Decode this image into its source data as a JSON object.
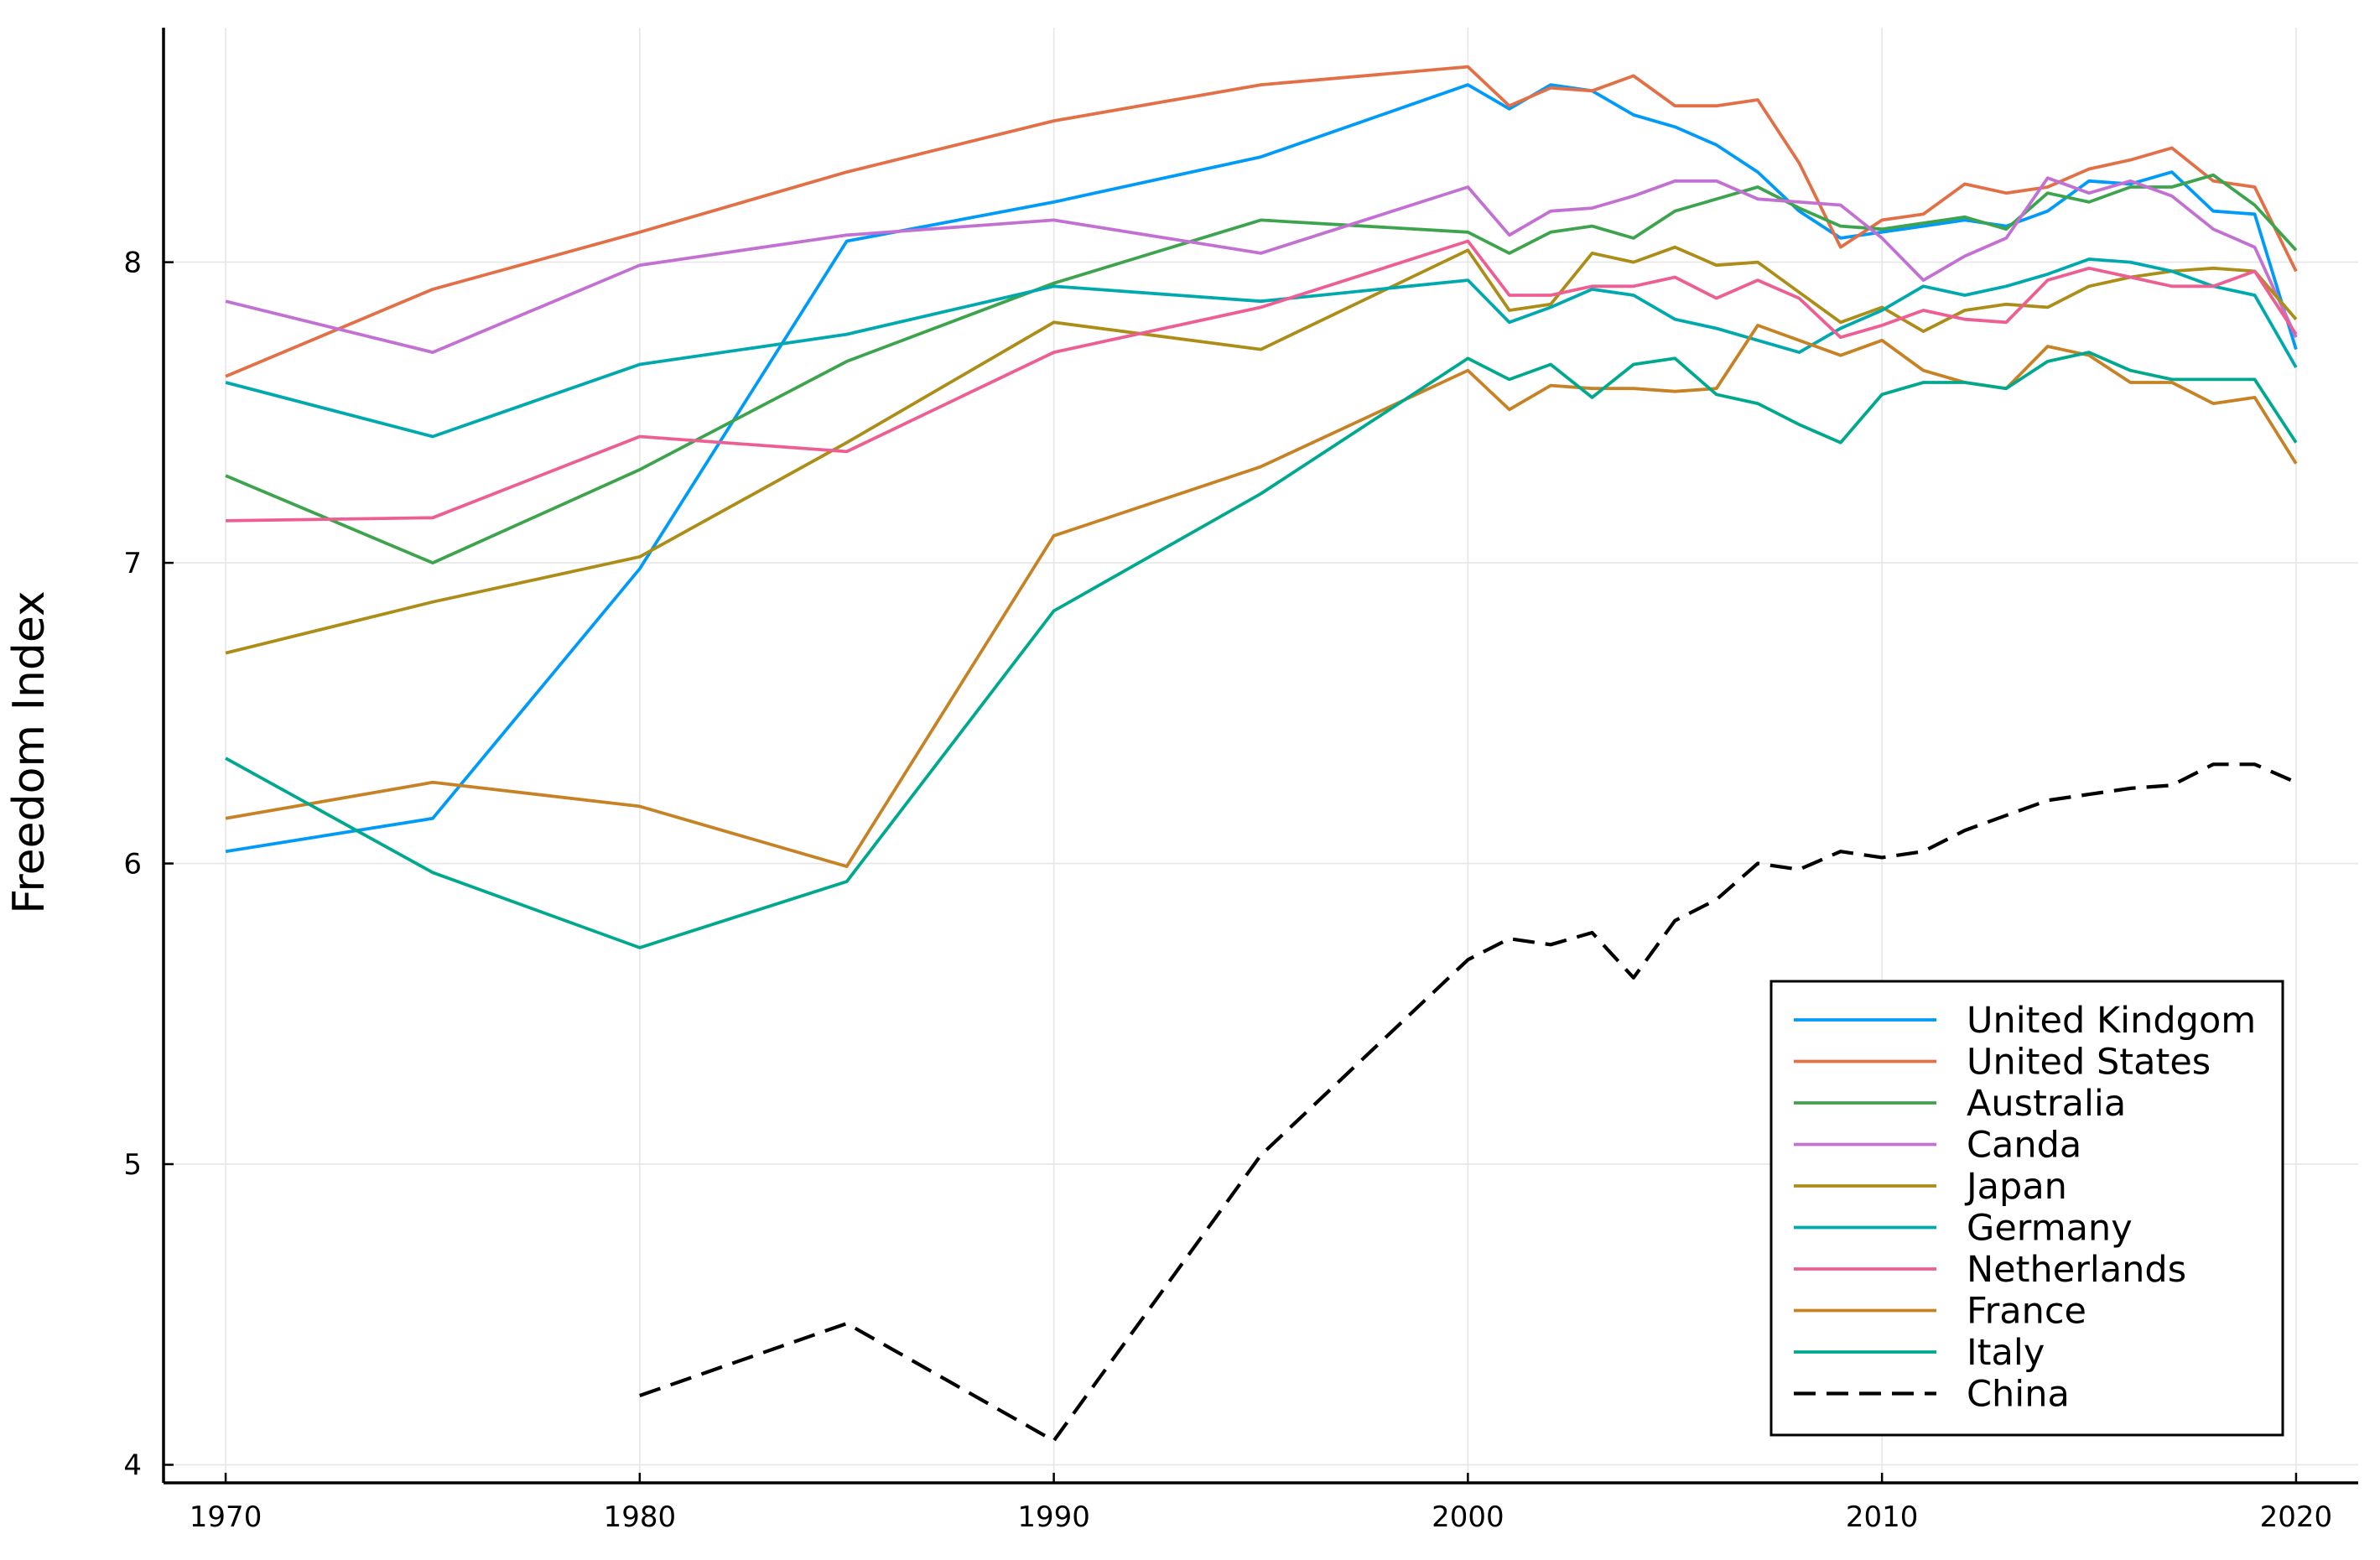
{
  "chart_data": {
    "type": "line",
    "title": "",
    "xlabel": "",
    "ylabel": "Freedom Index",
    "xlim": [
      1968.5,
      2021.5
    ],
    "ylim": [
      3.94,
      8.78
    ],
    "xticks": [
      1970,
      1980,
      1990,
      2000,
      2010,
      2020
    ],
    "yticks": [
      4,
      5,
      6,
      7,
      8
    ],
    "grid": true,
    "legend_position": "bottom-right",
    "series": [
      {
        "name": "United Kindgom",
        "color": "#009af9",
        "dash": "solid",
        "x": [
          1970,
          1975,
          1980,
          1985,
          1990,
          1995,
          2000,
          2001,
          2002,
          2003,
          2004,
          2005,
          2006,
          2007,
          2008,
          2009,
          2010,
          2011,
          2012,
          2013,
          2014,
          2015,
          2016,
          2017,
          2018,
          2019,
          2020
        ],
        "y": [
          6.04,
          6.15,
          6.98,
          8.07,
          8.2,
          8.35,
          8.59,
          8.51,
          8.59,
          8.57,
          8.49,
          8.45,
          8.39,
          8.3,
          8.17,
          8.08,
          8.1,
          8.12,
          8.14,
          8.12,
          8.17,
          8.27,
          8.26,
          8.3,
          8.17,
          8.16,
          7.71
        ]
      },
      {
        "name": "United States",
        "color": "#e26f46",
        "dash": "solid",
        "x": [
          1970,
          1975,
          1980,
          1985,
          1990,
          1995,
          2000,
          2001,
          2002,
          2003,
          2004,
          2005,
          2006,
          2007,
          2008,
          2009,
          2010,
          2011,
          2012,
          2013,
          2014,
          2015,
          2016,
          2017,
          2018,
          2019,
          2020
        ],
        "y": [
          7.62,
          7.91,
          8.1,
          8.3,
          8.47,
          8.59,
          8.65,
          8.52,
          8.58,
          8.57,
          8.62,
          8.52,
          8.52,
          8.54,
          8.33,
          8.05,
          8.14,
          8.16,
          8.26,
          8.23,
          8.25,
          8.31,
          8.34,
          8.38,
          8.27,
          8.25,
          7.97
        ]
      },
      {
        "name": "Australia",
        "color": "#3da44d",
        "dash": "solid",
        "x": [
          1970,
          1975,
          1980,
          1985,
          1990,
          1995,
          2000,
          2001,
          2002,
          2003,
          2004,
          2005,
          2006,
          2007,
          2008,
          2009,
          2010,
          2011,
          2012,
          2013,
          2014,
          2015,
          2016,
          2017,
          2018,
          2019,
          2020
        ],
        "y": [
          7.29,
          7.0,
          7.31,
          7.67,
          7.93,
          8.14,
          8.1,
          8.03,
          8.1,
          8.12,
          8.08,
          8.17,
          8.21,
          8.25,
          8.18,
          8.12,
          8.11,
          8.13,
          8.15,
          8.11,
          8.23,
          8.2,
          8.25,
          8.25,
          8.29,
          8.19,
          8.04
        ]
      },
      {
        "name": "Canda",
        "color": "#c271d2",
        "dash": "solid",
        "x": [
          1970,
          1975,
          1980,
          1985,
          1990,
          1995,
          2000,
          2001,
          2002,
          2003,
          2004,
          2005,
          2006,
          2007,
          2008,
          2009,
          2010,
          2011,
          2012,
          2013,
          2014,
          2015,
          2016,
          2017,
          2018,
          2019,
          2020
        ],
        "y": [
          7.87,
          7.7,
          7.99,
          8.09,
          8.14,
          8.03,
          8.25,
          8.09,
          8.17,
          8.18,
          8.22,
          8.27,
          8.27,
          8.21,
          8.2,
          8.19,
          8.08,
          7.94,
          8.02,
          8.08,
          8.28,
          8.23,
          8.27,
          8.22,
          8.11,
          8.05,
          7.75
        ]
      },
      {
        "name": "Japan",
        "color": "#ac8d18",
        "dash": "solid",
        "x": [
          1970,
          1975,
          1980,
          1985,
          1990,
          1995,
          2000,
          2001,
          2002,
          2003,
          2004,
          2005,
          2006,
          2007,
          2008,
          2009,
          2010,
          2011,
          2012,
          2013,
          2014,
          2015,
          2016,
          2017,
          2018,
          2019,
          2020
        ],
        "y": [
          6.7,
          6.87,
          7.02,
          7.4,
          7.8,
          7.71,
          8.04,
          7.84,
          7.86,
          8.03,
          8.0,
          8.05,
          7.99,
          8.0,
          7.9,
          7.8,
          7.85,
          7.77,
          7.84,
          7.86,
          7.85,
          7.92,
          7.95,
          7.97,
          7.98,
          7.97,
          7.81
        ]
      },
      {
        "name": "Germany",
        "color": "#00a9ad",
        "dash": "solid",
        "x": [
          1970,
          1975,
          1980,
          1985,
          1990,
          1995,
          2000,
          2001,
          2002,
          2003,
          2004,
          2005,
          2006,
          2007,
          2008,
          2009,
          2010,
          2011,
          2012,
          2013,
          2014,
          2015,
          2016,
          2017,
          2018,
          2019,
          2020
        ],
        "y": [
          7.6,
          7.42,
          7.66,
          7.76,
          7.92,
          7.87,
          7.94,
          7.8,
          7.85,
          7.91,
          7.89,
          7.81,
          7.78,
          7.74,
          7.7,
          7.78,
          7.84,
          7.92,
          7.89,
          7.92,
          7.96,
          8.01,
          8.0,
          7.97,
          7.92,
          7.89,
          7.65
        ]
      },
      {
        "name": "Netherlands",
        "color": "#ed5e93",
        "dash": "solid",
        "x": [
          1970,
          1975,
          1980,
          1985,
          1990,
          1995,
          2000,
          2001,
          2002,
          2003,
          2004,
          2005,
          2006,
          2007,
          2008,
          2009,
          2010,
          2011,
          2012,
          2013,
          2014,
          2015,
          2016,
          2017,
          2018,
          2019,
          2020
        ],
        "y": [
          7.14,
          7.15,
          7.42,
          7.37,
          7.7,
          7.85,
          8.07,
          7.89,
          7.89,
          7.92,
          7.92,
          7.95,
          7.88,
          7.94,
          7.88,
          7.75,
          7.79,
          7.84,
          7.81,
          7.8,
          7.94,
          7.98,
          7.95,
          7.92,
          7.92,
          7.97,
          7.76
        ]
      },
      {
        "name": "France",
        "color": "#c68225",
        "dash": "solid",
        "x": [
          1970,
          1975,
          1980,
          1985,
          1990,
          1995,
          2000,
          2001,
          2002,
          2003,
          2004,
          2005,
          2006,
          2007,
          2008,
          2009,
          2010,
          2011,
          2012,
          2013,
          2014,
          2015,
          2016,
          2017,
          2018,
          2019,
          2020
        ],
        "y": [
          6.15,
          6.27,
          6.19,
          5.99,
          7.09,
          7.32,
          7.64,
          7.51,
          7.59,
          7.58,
          7.58,
          7.57,
          7.58,
          7.79,
          7.74,
          7.69,
          7.74,
          7.64,
          7.6,
          7.58,
          7.72,
          7.69,
          7.6,
          7.6,
          7.53,
          7.55,
          7.33
        ]
      },
      {
        "name": "Italy",
        "color": "#00a98d",
        "dash": "solid",
        "x": [
          1970,
          1975,
          1980,
          1985,
          1990,
          1995,
          2000,
          2001,
          2002,
          2003,
          2004,
          2005,
          2006,
          2007,
          2008,
          2009,
          2010,
          2011,
          2012,
          2013,
          2014,
          2015,
          2016,
          2017,
          2018,
          2019,
          2020
        ],
        "y": [
          6.35,
          5.97,
          5.72,
          5.94,
          6.84,
          7.23,
          7.68,
          7.61,
          7.66,
          7.55,
          7.66,
          7.68,
          7.56,
          7.53,
          7.46,
          7.4,
          7.56,
          7.6,
          7.6,
          7.58,
          7.67,
          7.7,
          7.64,
          7.61,
          7.61,
          7.61,
          7.4
        ]
      },
      {
        "name": "China",
        "color": "#000000",
        "dash": "dashed",
        "x": [
          1980,
          1985,
          1990,
          1995,
          2000,
          2001,
          2002,
          2003,
          2004,
          2005,
          2006,
          2007,
          2008,
          2009,
          2010,
          2011,
          2012,
          2013,
          2014,
          2015,
          2016,
          2017,
          2018,
          2019,
          2020
        ],
        "y": [
          4.23,
          4.47,
          4.08,
          5.03,
          5.68,
          5.75,
          5.73,
          5.77,
          5.62,
          5.81,
          5.88,
          6.0,
          5.98,
          6.04,
          6.02,
          6.04,
          6.11,
          6.16,
          6.21,
          6.23,
          6.25,
          6.26,
          6.33,
          6.33,
          6.27
        ]
      }
    ]
  }
}
